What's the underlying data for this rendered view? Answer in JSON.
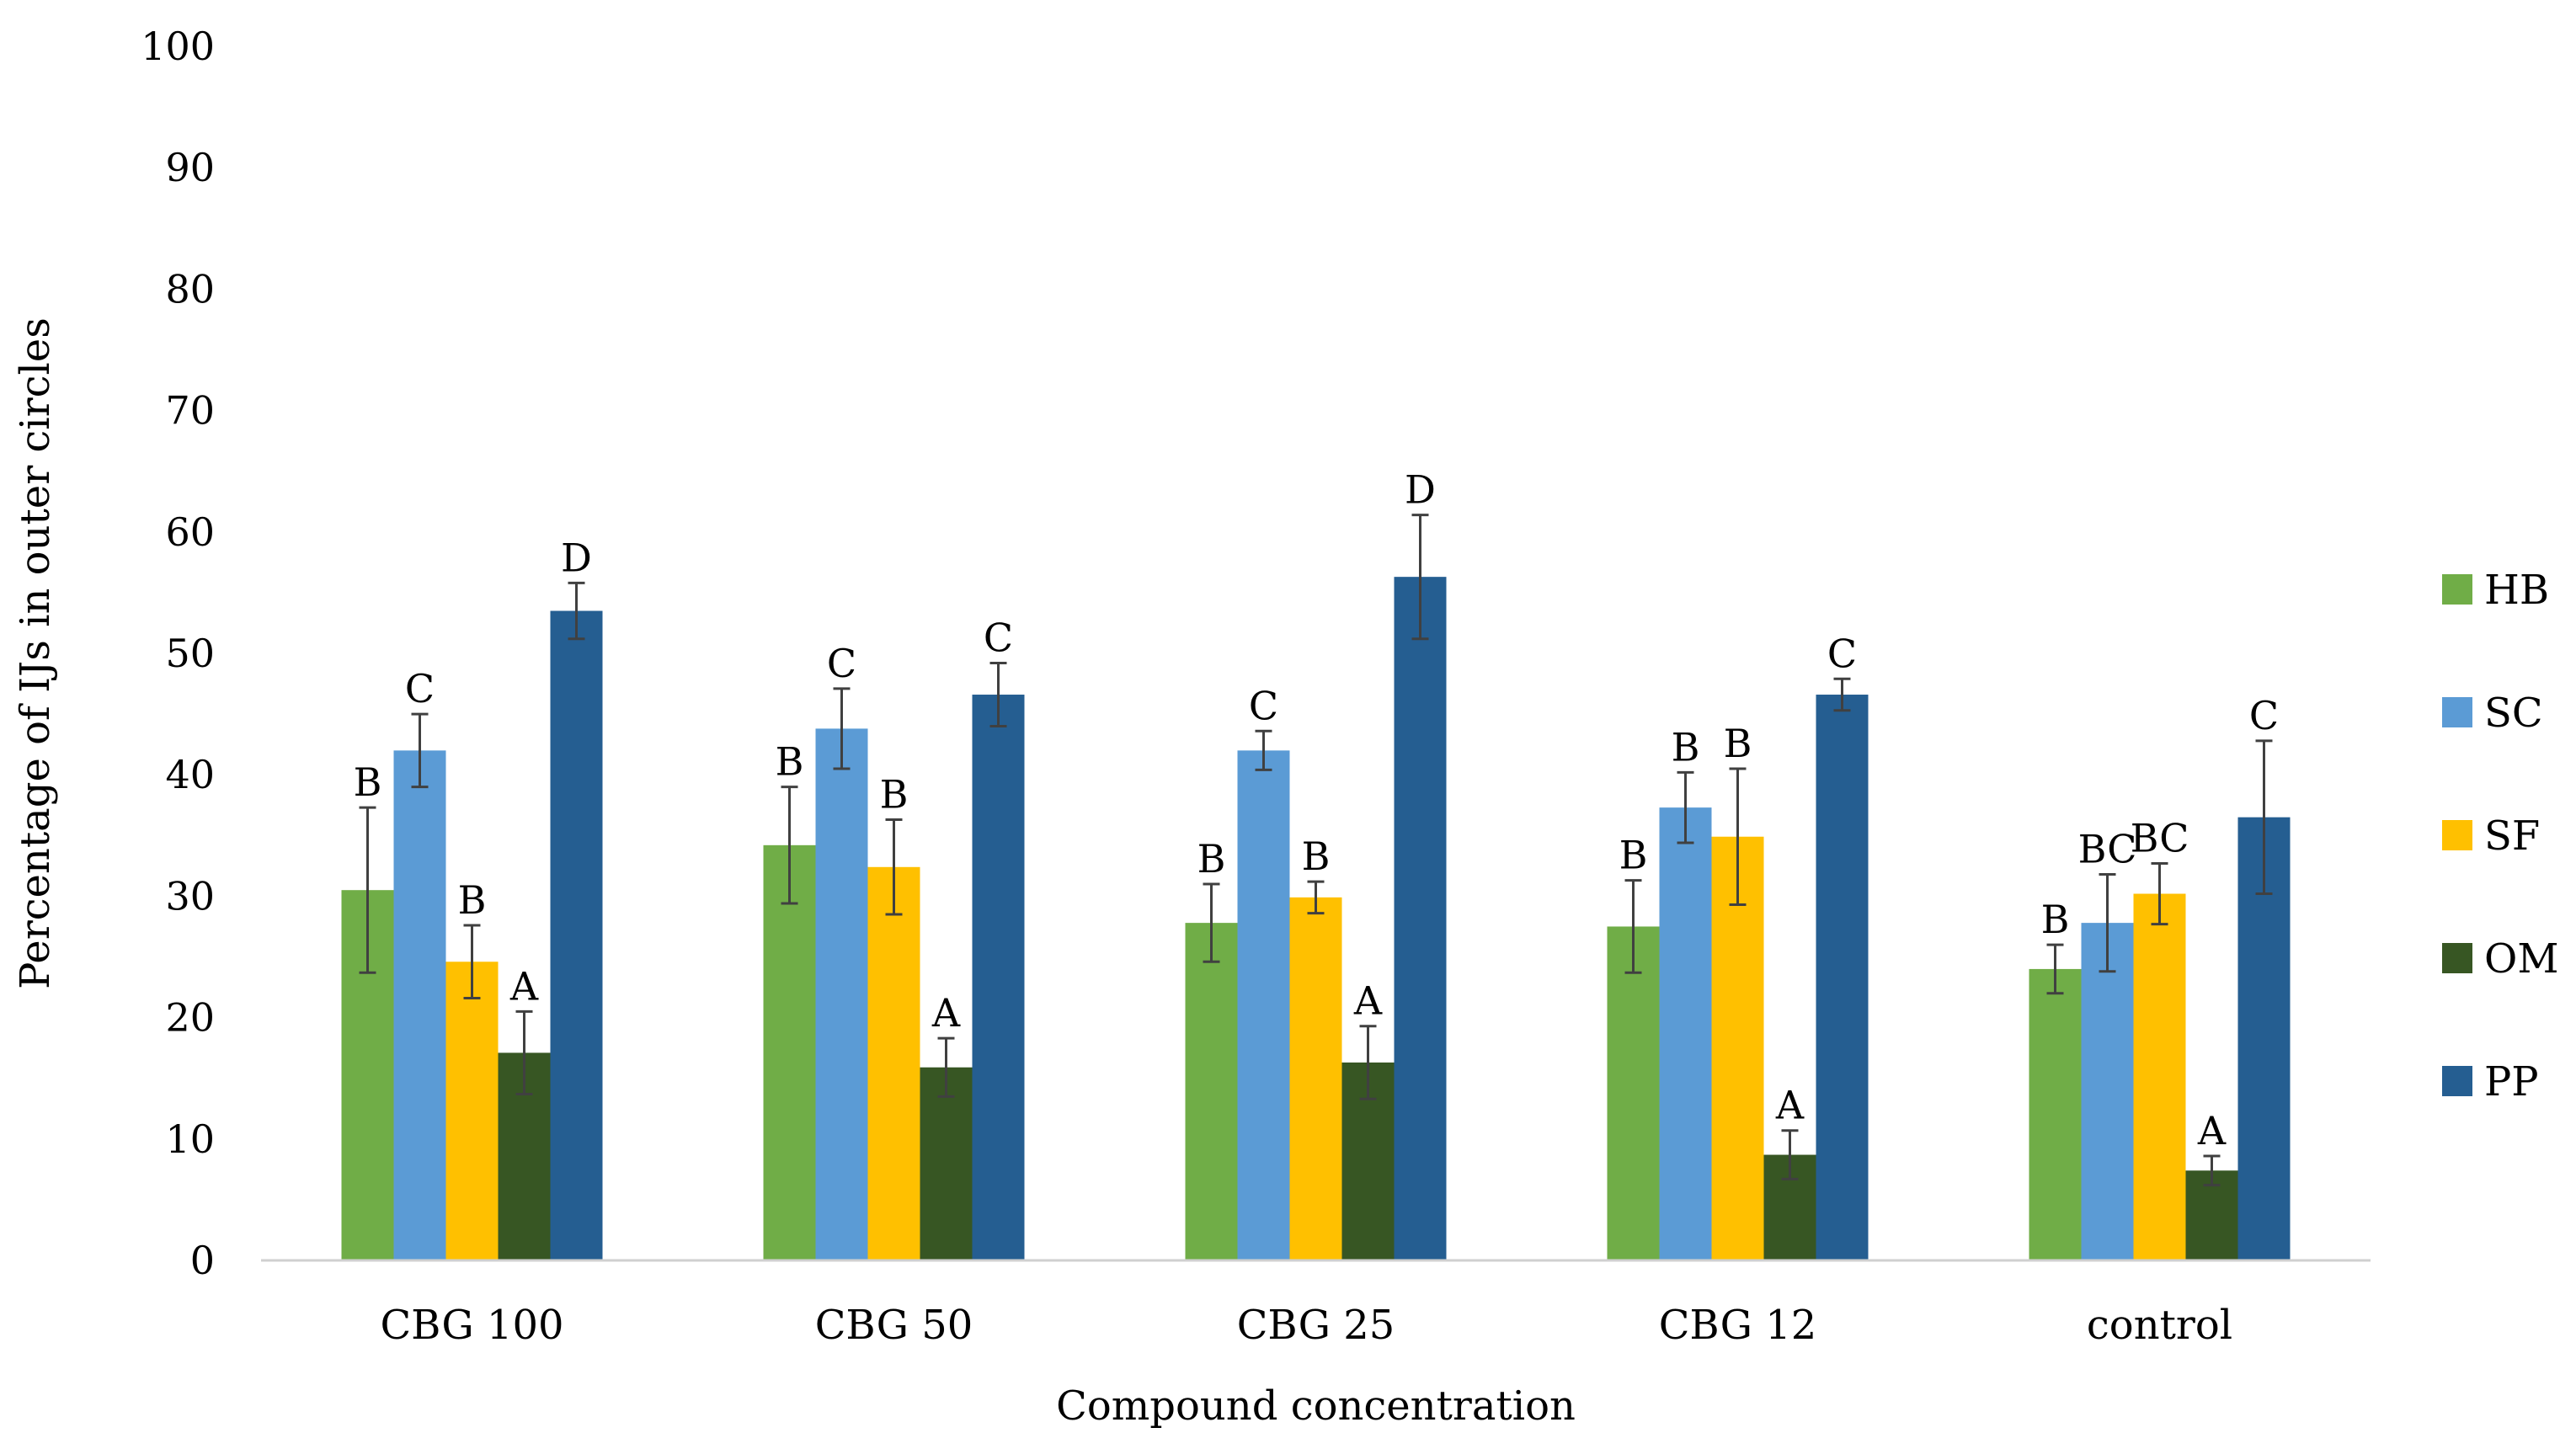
{
  "chart_data": {
    "type": "bar",
    "title": "",
    "xlabel": "Compound concentration",
    "ylabel": "Percentage of IJs in outer circles",
    "ylim": [
      0,
      100
    ],
    "yticks": [
      0,
      10,
      20,
      30,
      40,
      50,
      60,
      70,
      80,
      90,
      100
    ],
    "ytick_labels": [
      "0",
      "10",
      "20",
      "30",
      "40",
      "50",
      "60",
      "70",
      "80",
      "90",
      "100"
    ],
    "grid": false,
    "legend_position": "right",
    "categories": [
      "CBG 100",
      "CBG 50",
      "CBG 25",
      "CBG 12",
      "control"
    ],
    "series": [
      {
        "name": "HB",
        "color": "#70AD47",
        "values": [
          30.5,
          34.2,
          27.8,
          27.5,
          24.0
        ],
        "errors": [
          6.8,
          4.8,
          3.2,
          3.8,
          2.0
        ],
        "letters": [
          "B",
          "B",
          "B",
          "B",
          "B"
        ]
      },
      {
        "name": "SC",
        "color": "#5B9BD5",
        "values": [
          42.0,
          43.8,
          42.0,
          37.3,
          27.8
        ],
        "errors": [
          3.0,
          3.3,
          1.6,
          2.9,
          4.0
        ],
        "letters": [
          "C",
          "C",
          "C",
          "B",
          "BC"
        ]
      },
      {
        "name": "SF",
        "color": "#FFC000",
        "values": [
          24.6,
          32.4,
          29.9,
          34.9,
          30.2
        ],
        "errors": [
          3.0,
          3.9,
          1.3,
          5.6,
          2.5
        ],
        "letters": [
          "B",
          "B",
          "B",
          "B",
          "BC"
        ]
      },
      {
        "name": "OM",
        "color": "#375623",
        "values": [
          17.1,
          15.9,
          16.3,
          8.7,
          7.4
        ],
        "errors": [
          3.4,
          2.4,
          3.0,
          2.0,
          1.2
        ],
        "letters": [
          "A",
          "A",
          "A",
          "A",
          "A"
        ]
      },
      {
        "name": "PP",
        "color": "#255E91",
        "values": [
          53.5,
          46.6,
          56.3,
          46.6,
          36.5
        ],
        "errors": [
          2.3,
          2.6,
          5.1,
          1.3,
          6.3
        ],
        "letters": [
          "D",
          "C",
          "D",
          "C",
          "C"
        ]
      }
    ]
  }
}
